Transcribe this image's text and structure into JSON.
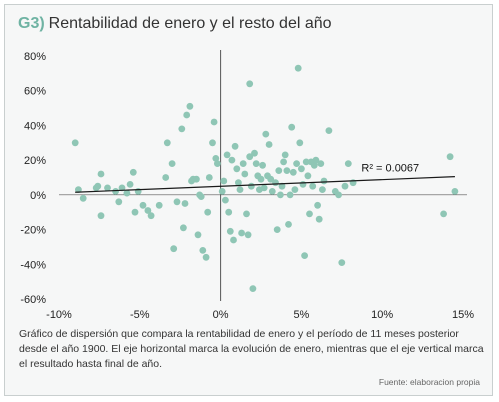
{
  "header": {
    "code": "G3)",
    "title": "Rentabilidad de enero y el resto del año"
  },
  "caption": "Gráfico de dispersión que compara la rentabilidad de enero y el período de 11 meses posterior desde el año 1900. El eje horizontal marca la evolución de enero, mientras que el eje vertical marca el resultado hasta final de año.",
  "source": "Fuente: elaboracion propia",
  "colors": {
    "points": "#8fc6b5",
    "trend": "#1a1a1a",
    "axis": "#555555",
    "title_code": "#6fb3a3",
    "panel": "#f6f7f7"
  },
  "chart_data": {
    "type": "scatter",
    "title": "Rentabilidad de enero y el resto del año",
    "xlabel": "",
    "ylabel": "",
    "xlim": [
      -10,
      15
    ],
    "ylim": [
      -60,
      80
    ],
    "x_ticks": [
      -10,
      -5,
      0,
      5,
      10,
      15
    ],
    "x_tick_labels": [
      "-10%",
      "-5%",
      "0%",
      "5%",
      "10%",
      "15%"
    ],
    "y_ticks": [
      80,
      60,
      40,
      20,
      0,
      -20,
      -40,
      -60
    ],
    "y_tick_labels": [
      "80%",
      "60%",
      "40%",
      "20%",
      "0%",
      "-20%",
      "-40%",
      "-60%"
    ],
    "grid": false,
    "annotation": "R² = 0.0067",
    "trendline": {
      "x": [
        -9,
        14.5
      ],
      "y": [
        1.5,
        10.5
      ]
    },
    "points": [
      [
        -9,
        30
      ],
      [
        -8.8,
        3
      ],
      [
        -8.5,
        -2
      ],
      [
        -7.7,
        4
      ],
      [
        -7.6,
        5
      ],
      [
        -7.4,
        12
      ],
      [
        -7.4,
        -12
      ],
      [
        -7,
        4
      ],
      [
        -6.5,
        2
      ],
      [
        -6.3,
        -4
      ],
      [
        -6.1,
        4
      ],
      [
        -5.8,
        1
      ],
      [
        -5.6,
        6
      ],
      [
        -5.4,
        13
      ],
      [
        -5.3,
        -10
      ],
      [
        -5.1,
        2
      ],
      [
        -4.8,
        -6
      ],
      [
        -4.5,
        -9
      ],
      [
        -4.3,
        -12
      ],
      [
        -3.8,
        -6
      ],
      [
        -3.4,
        10
      ],
      [
        -3.3,
        30
      ],
      [
        -3,
        18
      ],
      [
        -2.9,
        -31
      ],
      [
        -2.7,
        -4
      ],
      [
        -2.4,
        38
      ],
      [
        -2.3,
        -19
      ],
      [
        -2.2,
        -5
      ],
      [
        -2.1,
        46
      ],
      [
        -1.9,
        51
      ],
      [
        -1.8,
        8
      ],
      [
        -1.7,
        9
      ],
      [
        -1.5,
        9
      ],
      [
        -1.4,
        -23
      ],
      [
        -1.3,
        0
      ],
      [
        -1.2,
        -1
      ],
      [
        -1.1,
        -32
      ],
      [
        -0.9,
        -36
      ],
      [
        -0.8,
        -10
      ],
      [
        -0.7,
        10
      ],
      [
        -0.5,
        30
      ],
      [
        -0.4,
        42
      ],
      [
        -0.3,
        21
      ],
      [
        -0.2,
        18
      ],
      [
        0.1,
        2
      ],
      [
        0.2,
        8
      ],
      [
        0.3,
        -3
      ],
      [
        0.4,
        23
      ],
      [
        0.5,
        -10
      ],
      [
        0.6,
        -21
      ],
      [
        0.7,
        20
      ],
      [
        0.8,
        -26
      ],
      [
        0.9,
        28
      ],
      [
        1,
        15
      ],
      [
        1.1,
        7
      ],
      [
        1.2,
        3
      ],
      [
        1.3,
        -22
      ],
      [
        1.4,
        18
      ],
      [
        1.5,
        12
      ],
      [
        1.6,
        -11
      ],
      [
        1.7,
        -23
      ],
      [
        1.8,
        22
      ],
      [
        1.8,
        64
      ],
      [
        1.9,
        5
      ],
      [
        2,
        -54
      ],
      [
        2.1,
        24
      ],
      [
        2.2,
        18
      ],
      [
        2.3,
        11
      ],
      [
        2.4,
        3
      ],
      [
        2.5,
        9
      ],
      [
        2.6,
        17
      ],
      [
        2.7,
        4
      ],
      [
        2.8,
        35
      ],
      [
        2.9,
        11
      ],
      [
        3,
        29
      ],
      [
        3.1,
        9
      ],
      [
        3.2,
        2
      ],
      [
        3.4,
        7
      ],
      [
        3.5,
        -20
      ],
      [
        3.6,
        14
      ],
      [
        3.7,
        0
      ],
      [
        3.8,
        5
      ],
      [
        3.9,
        19
      ],
      [
        4,
        23
      ],
      [
        4.1,
        14
      ],
      [
        4.2,
        -17
      ],
      [
        4.3,
        0
      ],
      [
        4.4,
        39
      ],
      [
        4.5,
        13
      ],
      [
        4.6,
        3
      ],
      [
        4.7,
        18
      ],
      [
        4.8,
        73
      ],
      [
        4.9,
        30
      ],
      [
        5,
        15
      ],
      [
        5.1,
        6
      ],
      [
        5.2,
        -35
      ],
      [
        5.3,
        19
      ],
      [
        5.4,
        11
      ],
      [
        5.5,
        -11
      ],
      [
        5.6,
        19
      ],
      [
        5.7,
        5
      ],
      [
        5.8,
        17
      ],
      [
        5.9,
        20
      ],
      [
        6,
        -6
      ],
      [
        6.1,
        -14
      ],
      [
        6.2,
        18
      ],
      [
        6.3,
        3
      ],
      [
        6.4,
        8
      ],
      [
        6.7,
        37
      ],
      [
        7.1,
        2
      ],
      [
        7.3,
        0
      ],
      [
        7.5,
        -39
      ],
      [
        7.7,
        5
      ],
      [
        7.9,
        18
      ],
      [
        8.2,
        7
      ],
      [
        13.8,
        -11
      ],
      [
        14.2,
        22
      ],
      [
        14.5,
        2
      ]
    ]
  }
}
